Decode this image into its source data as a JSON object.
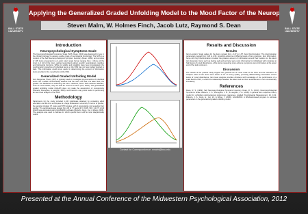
{
  "header": {
    "title": "Applying the Generalized Graded Unfolding Model to the Mood Factor of the Neuropsychological Symptoms Scale",
    "authors": "Steven Malm, W. Holmes Finch, Jacob Lutz, Raymond S. Dean",
    "logo_left": "BALL STATE UNIVERSITY",
    "logo_right": "BALL STATE UNIVERSITY"
  },
  "left": {
    "heading": "Introduction",
    "sections": [
      {
        "title": "Neuropsychological Symptoms Scale",
        "text": "The Neuropsychological Symptoms Scale (NSS; Dean, 2010) was designed for use in the clinical interview to assess a wide range of neurological functioning. The NSS is a revision of the Self Neuropsychological Symptom Inventory (Dean, 1982), and consists of 105 items presented in a 4-point Likert scale format ranging from 1 (None of the time) to 4 (All of the time), asking respondents about specific neurological, cognitive and behavioral functions. While its validity and reliability have been investigated, the psychometric properties of individual items on the NSS has not been widely studied to date. This information could prove useful in determining the amount of information items provide for the mood factor of the NSS."
      },
      {
        "title": "Generalized Graded Unfolding Model",
        "text": "Item Response Theory (IRT) is typically used to investigate psychometrics of individual items. IRT models monotonically assume that the more one has of a latent trait, the greater the likelihood of endorsing the item. However, items that measure attitudes, such as mood states, may not hold for most of its items (Luo, 2012). The generalized graded unfolding model (GGUM) does not make the assumption of monotonicity (Roberts, Donoghue, & Laughlin, 2000), and therefore may prove useful in performing an item level analysis of the NSS."
      },
      {
        "title": "Methodology",
        "text": "Participants for the study included 1,136 individuals obtained by contacting adult education and full-time employees at a large Midwestern university. In terms of gender, the sample included 37 males and 578 females, with 3 respondents not revealing their gender. The participants age ranged from 18 to 77 years (M = 33.05, SD = 12.37). A full GGUM was estimated using GGUM2004 software (Roberts, Fang, Cui, & Wang, 2006). The analysis was used to indicate for which specific items will be most diagnostically useful."
      }
    ]
  },
  "middle": {
    "contact": "Contact for Correspondence: smalm@bsu.edu"
  },
  "right": {
    "heading": "Results and Discussion",
    "sections": [
      {
        "title": "Results",
        "text": "Item Location: Scale values for the items ranged from -0.47 to 4.87. Item Discrimination: The discrimination parameters ranged from 0.23 to 2.36, providing evidence of differing levels of item precision. Item Information: Items with high discrimination provided the greatest amount of information around their location on the latent trait. Example: Items such as feeling sad and worrying were most informative for individuals with moderate to high levels of mood disturbance, while items measuring more extreme symptoms were informative at the upper end of the trait continuum."
      },
      {
        "title": "Discussion",
        "text": "The results of the present study support the general use of mood scale of the NSS and the GGUM in its analysis. Most of the items were shown to be of strong quality, providing differentiating information across levels of mood disturbance. Item level analysis provides clinicians with knowledge of the performance of a scale like the NSS, in which the relationship between the latent trait and item endorsement is not monotonically increasing."
      },
      {
        "title": "References",
        "text": "Dean, R. S. (1982). Self Neuropsychological Symptom Inventory. Dean, R. S. (2010). Neuropsychological Symptoms Scale. Roberts, J. S., Donoghue, J. R., & Laughlin, J. E. (2000). A general item response theory model for unfolding unidimensional polytomous responses. Applied Psychological Measurement, 24, 3-32. Roberts, J. S., Fang, H., Cui, W., & Wang, Y. (2006). GGUM2004: A Windows-based program to estimate parameters in the generalized graded unfolding model."
      }
    ]
  },
  "footer": "Presented at the Annual Conference of the Midwestern Psychological Association, 2012"
}
